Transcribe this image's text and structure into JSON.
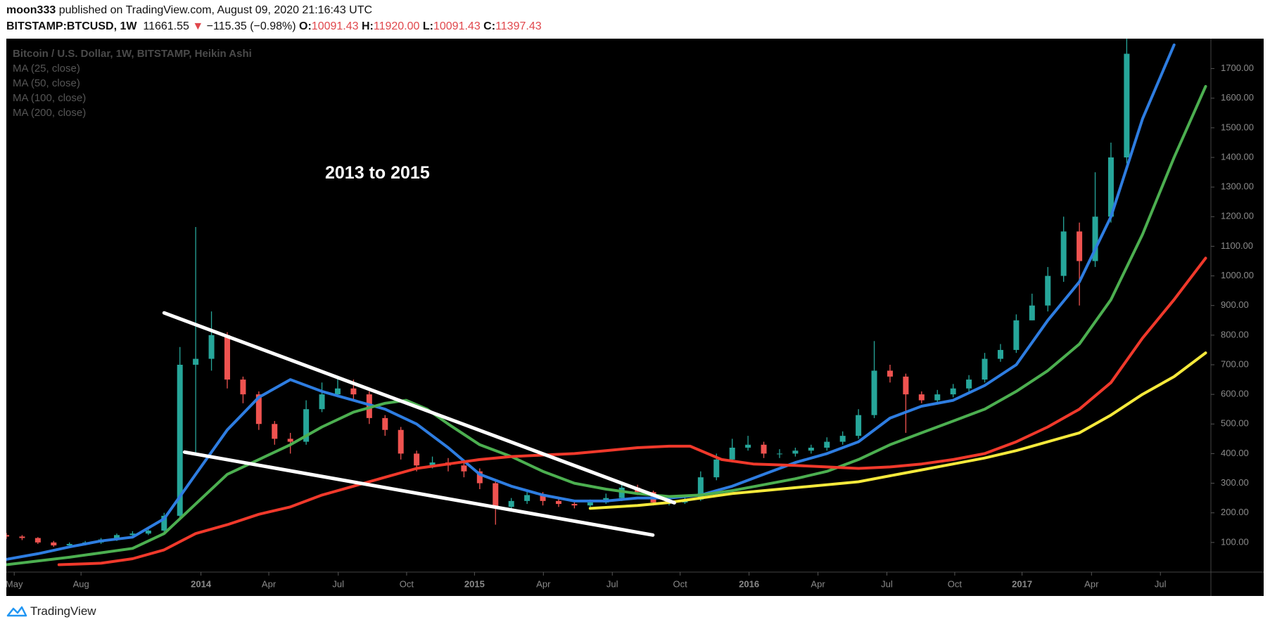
{
  "header": {
    "user": "moon333",
    "published": "published on TradingView.com, August 09, 2020 21:16:43 UTC",
    "symbol": "BITSTAMP:BTCUSD, 1W",
    "last": "11661.55",
    "arrow": "▼",
    "change": "−115.35 (−0.98%)",
    "o_label": "O:",
    "o": "10091.43",
    "h_label": "H:",
    "h": "11920.00",
    "l_label": "L:",
    "l": "10091.43",
    "c_label": "C:",
    "c": "11397.43"
  },
  "footer": {
    "brand": "TradingView"
  },
  "chart_data": {
    "type": "candlestick",
    "legend_title": "Bitcoin / U.S. Dollar, 1W, BITSTAMP, Heikin Ashi",
    "annotation": "2013 to 2015",
    "xlim": [
      0,
      229
    ],
    "xticks": [
      {
        "value": 1.5,
        "label": "May"
      },
      {
        "value": 14.2,
        "label": "Aug"
      },
      {
        "value": 37.0,
        "label": "2014"
      },
      {
        "value": 49.9,
        "label": "Apr"
      },
      {
        "value": 63.1,
        "label": "Jul"
      },
      {
        "value": 76.1,
        "label": "Oct"
      },
      {
        "value": 89.0,
        "label": "2015"
      },
      {
        "value": 102.1,
        "label": "Apr"
      },
      {
        "value": 115.2,
        "label": "Jul"
      },
      {
        "value": 128.1,
        "label": "Oct"
      },
      {
        "value": 141.2,
        "label": "2016"
      },
      {
        "value": 154.3,
        "label": "Apr"
      },
      {
        "value": 167.4,
        "label": "Jul"
      },
      {
        "value": 180.3,
        "label": "Oct"
      },
      {
        "value": 193.1,
        "label": "2017"
      },
      {
        "value": 206.3,
        "label": "Apr"
      },
      {
        "value": 219.4,
        "label": "Jul"
      }
    ],
    "ylim": [
      0,
      1801
    ],
    "yticks": [
      {
        "value": 100,
        "label": "100.00"
      },
      {
        "value": 200,
        "label": "200.00"
      },
      {
        "value": 300,
        "label": "300.00"
      },
      {
        "value": 400,
        "label": "400.00"
      },
      {
        "value": 500,
        "label": "500.00"
      },
      {
        "value": 600,
        "label": "600.00"
      },
      {
        "value": 700,
        "label": "700.00"
      },
      {
        "value": 800,
        "label": "800.00"
      },
      {
        "value": 900,
        "label": "900.00"
      },
      {
        "value": 1000,
        "label": "1000.00"
      },
      {
        "value": 1100,
        "label": "1100.00"
      },
      {
        "value": 1200,
        "label": "1200.00"
      },
      {
        "value": 1300,
        "label": "1300.00"
      },
      {
        "value": 1400,
        "label": "1400.00"
      },
      {
        "value": 1500,
        "label": "1500.00"
      },
      {
        "value": 1600,
        "label": "1600.00"
      },
      {
        "value": 1700,
        "label": "1700.00"
      }
    ],
    "grid": false,
    "candles": {
      "up_color": "#26a69a",
      "down_color": "#ef5350",
      "x": [
        0,
        3,
        6,
        9,
        12,
        15,
        18,
        21,
        24,
        27,
        30,
        33,
        36,
        39,
        42,
        45,
        48,
        51,
        54,
        57,
        60,
        63,
        66,
        69,
        72,
        75,
        78,
        81,
        84,
        87,
        90,
        93,
        96,
        99,
        102,
        105,
        108,
        111,
        114,
        117,
        120,
        123,
        126,
        129,
        132,
        135,
        138,
        141,
        144,
        147,
        150,
        153,
        156,
        159,
        162,
        165,
        168,
        171,
        174,
        177,
        180,
        183,
        186,
        189,
        192,
        195,
        198,
        201,
        204,
        207,
        210,
        213
      ],
      "open": [
        125,
        120,
        115,
        100,
        90,
        95,
        100,
        110,
        125,
        130,
        140,
        190,
        700,
        720,
        800,
        650,
        600,
        500,
        450,
        440,
        550,
        600,
        620,
        600,
        520,
        480,
        400,
        360,
        370,
        360,
        340,
        300,
        220,
        240,
        260,
        240,
        230,
        225,
        235,
        250,
        285,
        270,
        235,
        235,
        245,
        320,
        380,
        420,
        430,
        400,
        400,
        410,
        420,
        440,
        460,
        530,
        680,
        660,
        600,
        580,
        600,
        620,
        650,
        720,
        750,
        850,
        900,
        1000,
        1150,
        1050,
        1200,
        1400
      ],
      "high": [
        132,
        125,
        118,
        105,
        100,
        105,
        115,
        130,
        138,
        148,
        200,
        760,
        1165,
        880,
        810,
        660,
        610,
        510,
        470,
        580,
        640,
        660,
        650,
        610,
        530,
        490,
        410,
        390,
        385,
        370,
        350,
        310,
        250,
        275,
        270,
        250,
        240,
        245,
        265,
        300,
        295,
        275,
        245,
        255,
        340,
        400,
        450,
        460,
        440,
        415,
        420,
        430,
        455,
        475,
        550,
        780,
        700,
        670,
        610,
        615,
        635,
        665,
        740,
        770,
        870,
        940,
        1030,
        1200,
        1180,
        1350,
        1450,
        1850
      ],
      "low": [
        112,
        108,
        95,
        85,
        85,
        90,
        95,
        105,
        120,
        125,
        135,
        185,
        400,
        680,
        620,
        570,
        480,
        430,
        400,
        430,
        540,
        590,
        580,
        500,
        460,
        380,
        340,
        350,
        340,
        320,
        280,
        160,
        210,
        230,
        225,
        220,
        215,
        220,
        230,
        240,
        260,
        225,
        225,
        230,
        240,
        310,
        370,
        410,
        385,
        385,
        390,
        400,
        410,
        430,
        450,
        520,
        640,
        470,
        570,
        570,
        590,
        610,
        640,
        710,
        740,
        850,
        880,
        980,
        900,
        1030,
        1180,
        1380
      ],
      "close": [
        120,
        115,
        100,
        90,
        95,
        100,
        110,
        125,
        130,
        140,
        190,
        700,
        720,
        800,
        650,
        600,
        500,
        450,
        440,
        550,
        600,
        620,
        600,
        520,
        480,
        400,
        360,
        370,
        360,
        340,
        300,
        220,
        240,
        260,
        240,
        230,
        225,
        235,
        250,
        285,
        270,
        235,
        235,
        245,
        320,
        380,
        420,
        430,
        400,
        400,
        410,
        420,
        440,
        460,
        530,
        680,
        660,
        600,
        580,
        600,
        620,
        650,
        720,
        750,
        850,
        900,
        1000,
        1150,
        1050,
        1200,
        1400,
        1750
      ]
    },
    "series": [
      {
        "name": "MA (25, close)",
        "color": "#2e7de1",
        "x": [
          0,
          6,
          12,
          18,
          24,
          30,
          36,
          42,
          48,
          54,
          60,
          66,
          72,
          78,
          84,
          90,
          96,
          102,
          108,
          114,
          120,
          126,
          132,
          138,
          144,
          150,
          156,
          162,
          168,
          174,
          180,
          186,
          192,
          198,
          204,
          210,
          216,
          222
        ],
        "values": [
          43,
          62,
          85,
          105,
          118,
          180,
          330,
          480,
          590,
          650,
          610,
          580,
          550,
          500,
          420,
          330,
          290,
          260,
          240,
          240,
          250,
          250,
          260,
          290,
          330,
          370,
          400,
          440,
          520,
          560,
          580,
          630,
          700,
          850,
          980,
          1200,
          1530,
          1780
        ]
      },
      {
        "name": "MA (50, close)",
        "color": "#4caf50",
        "x": [
          0,
          12,
          24,
          30,
          36,
          42,
          48,
          54,
          60,
          66,
          72,
          76,
          80,
          84,
          90,
          96,
          102,
          108,
          114,
          120,
          126,
          132,
          138,
          144,
          150,
          156,
          162,
          168,
          174,
          180,
          186,
          192,
          198,
          204,
          210,
          216,
          222,
          228
        ],
        "values": [
          25,
          50,
          80,
          130,
          230,
          330,
          380,
          430,
          490,
          540,
          570,
          580,
          550,
          500,
          430,
          390,
          340,
          300,
          280,
          265,
          255,
          260,
          275,
          295,
          315,
          340,
          380,
          430,
          470,
          510,
          550,
          610,
          680,
          770,
          920,
          1140,
          1400,
          1640
        ]
      },
      {
        "name": "MA (100, close)",
        "color": "#f0392b",
        "x": [
          10,
          18,
          24,
          30,
          36,
          42,
          48,
          54,
          60,
          66,
          72,
          78,
          84,
          90,
          96,
          102,
          108,
          114,
          120,
          126,
          130,
          136,
          142,
          150,
          156,
          162,
          168,
          174,
          180,
          186,
          192,
          198,
          204,
          210,
          216,
          222,
          228
        ],
        "values": [
          25,
          30,
          45,
          75,
          130,
          160,
          195,
          220,
          260,
          290,
          320,
          350,
          365,
          380,
          390,
          395,
          400,
          410,
          420,
          425,
          425,
          380,
          365,
          360,
          355,
          350,
          355,
          365,
          380,
          400,
          440,
          490,
          550,
          640,
          790,
          920,
          1060
        ]
      },
      {
        "name": "MA (200, close)",
        "color": "#f5e93b",
        "x": [
          111,
          120,
          126,
          132,
          138,
          144,
          150,
          156,
          162,
          168,
          174,
          180,
          186,
          192,
          198,
          204,
          210,
          216,
          222,
          228
        ],
        "values": [
          215,
          225,
          235,
          250,
          265,
          275,
          285,
          295,
          305,
          325,
          345,
          365,
          385,
          410,
          440,
          470,
          530,
          600,
          660,
          740
        ]
      }
    ],
    "trendlines": [
      {
        "color": "#ffffff",
        "x": [
          30,
          127
        ],
        "values": [
          875,
          234
        ]
      },
      {
        "color": "#ffffff",
        "x": [
          33.9,
          122.9
        ],
        "values": [
          405,
          125
        ]
      }
    ]
  }
}
